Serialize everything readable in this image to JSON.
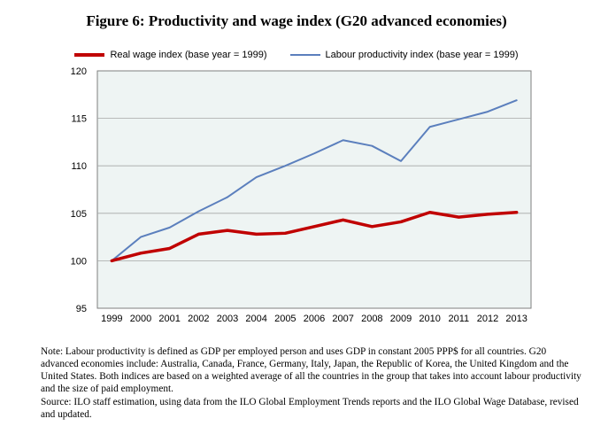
{
  "figure": {
    "title": "Figure 6:  Productivity and wage index (G20 advanced economies)",
    "note": "Note: Labour productivity is defined as GDP per employed person and uses GDP in constant 2005 PPP$ for all countries.  G20 advanced economies include: Australia, Canada, France, Germany, Italy, Japan, the Republic of Korea, the United Kingdom and the United States.  Both indices are based on a weighted average of all the countries in the group that takes into account labour productivity and the size of paid employment.",
    "source": "Source: ILO staff estimation, using data from the ILO Global Employment Trends reports and the ILO Global Wage Database, revised and updated."
  },
  "colors": {
    "wage": "#c00000",
    "productivity": "#5b7fbd",
    "plot_background": "#eef4f3",
    "gridline": "#a6a6a6"
  },
  "chart_data": {
    "type": "line",
    "title": "Figure 6:  Productivity and wage index (G20 advanced economies)",
    "xlabel": "",
    "ylabel": "",
    "x": [
      "1999",
      "2000",
      "2001",
      "2002",
      "2003",
      "2004",
      "2005",
      "2006",
      "2007",
      "2008",
      "2009",
      "2010",
      "2011",
      "2012",
      "2013"
    ],
    "ylim": [
      95,
      120
    ],
    "yticks": [
      95,
      100,
      105,
      110,
      115,
      120
    ],
    "grid": true,
    "legend_position": "top",
    "series": [
      {
        "name": "Real wage index (base year = 1999)",
        "values": [
          100,
          100.8,
          101.3,
          102.8,
          103.2,
          102.8,
          102.9,
          103.6,
          104.3,
          103.6,
          104.1,
          105.1,
          104.6,
          104.9,
          105.1
        ]
      },
      {
        "name": "Labour productivity index (base year = 1999)",
        "values": [
          100,
          102.5,
          103.5,
          105.2,
          106.7,
          108.8,
          110.0,
          111.3,
          112.7,
          112.1,
          110.5,
          114.1,
          114.9,
          115.7,
          116.9
        ]
      }
    ]
  }
}
